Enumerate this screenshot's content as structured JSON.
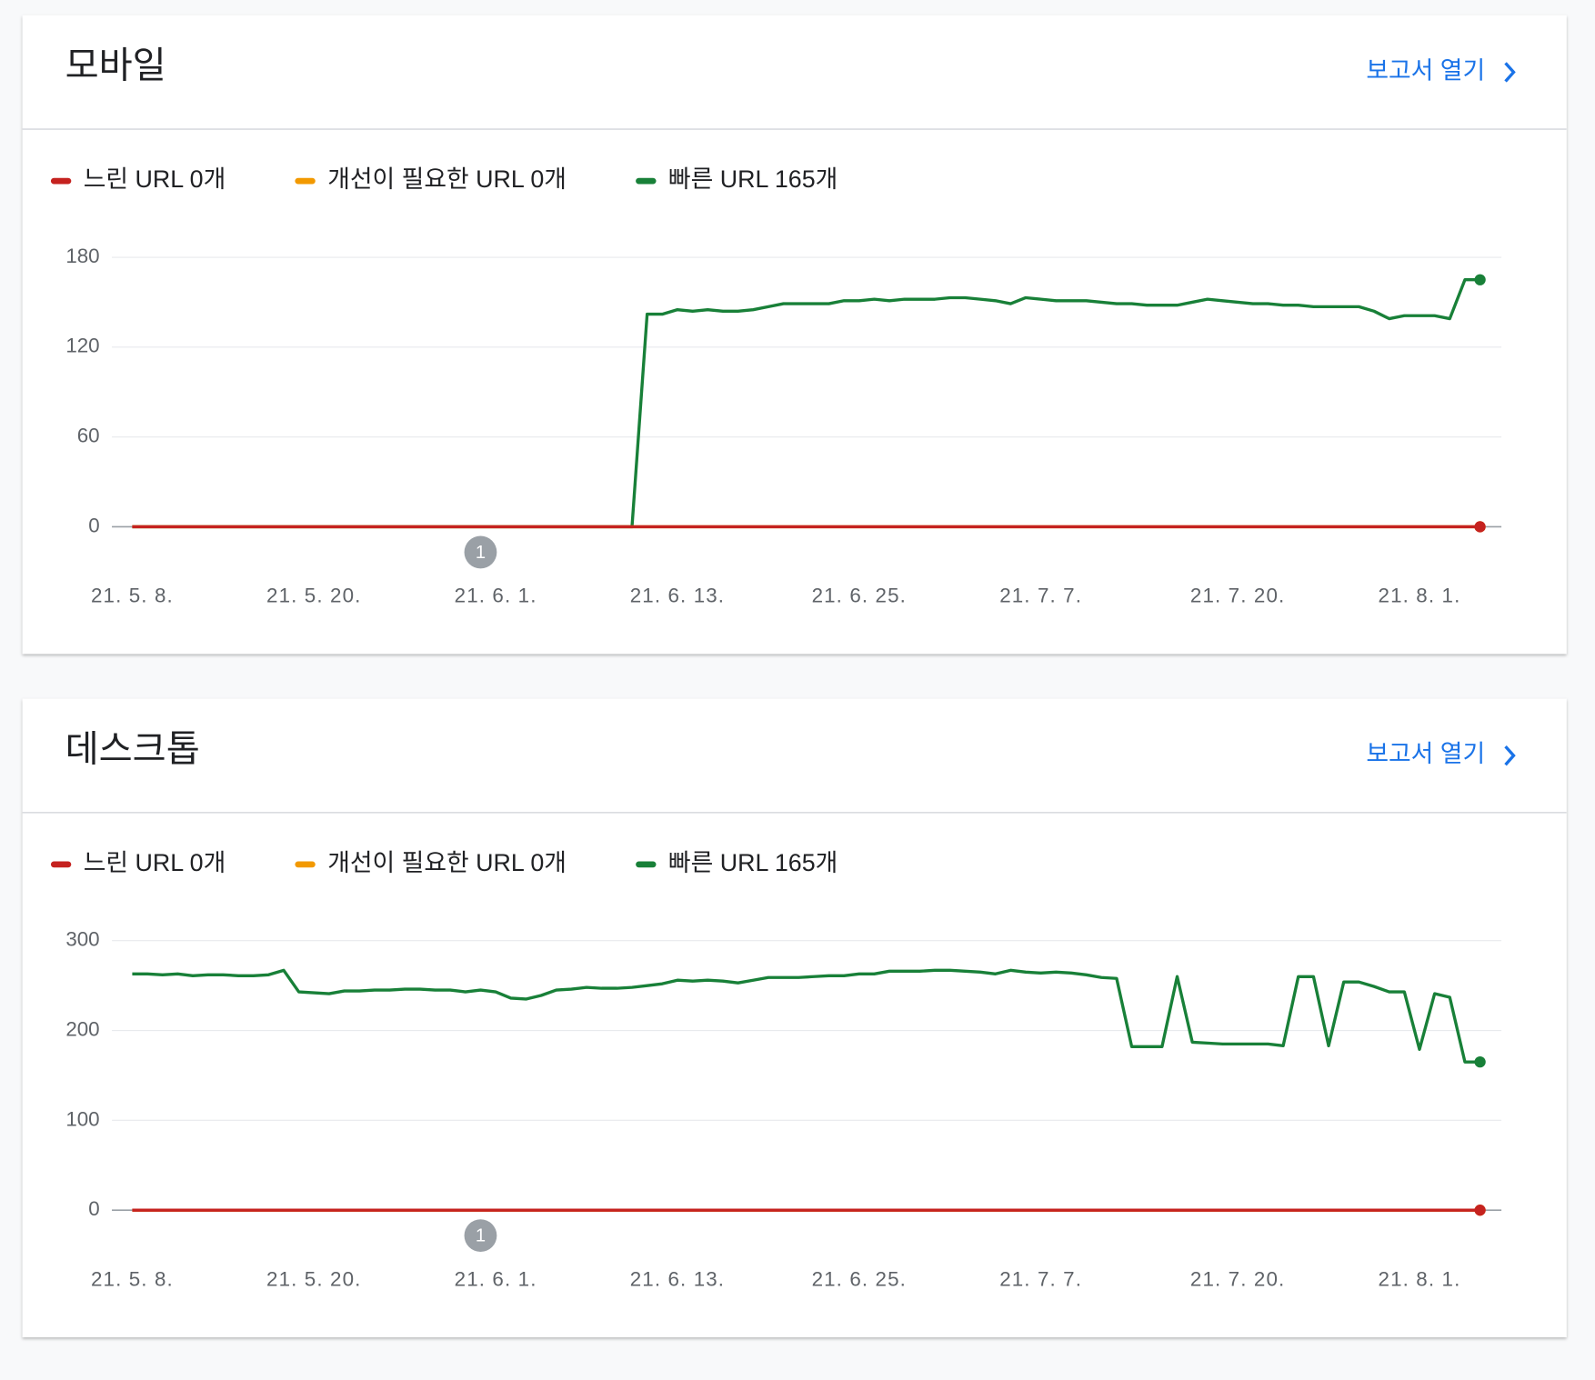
{
  "chart_data": [
    {
      "type": "line",
      "title": "모바일",
      "link": "보고서 열기",
      "annotation": "1",
      "categories": [
        "21. 5. 8.",
        null,
        null,
        null,
        null,
        null,
        null,
        null,
        null,
        null,
        null,
        null,
        "21. 5. 20.",
        null,
        null,
        null,
        null,
        null,
        null,
        null,
        null,
        null,
        null,
        null,
        "21. 6. 1.",
        null,
        null,
        null,
        null,
        null,
        null,
        null,
        null,
        null,
        null,
        null,
        "21. 6. 13.",
        null,
        null,
        null,
        null,
        null,
        null,
        null,
        null,
        null,
        null,
        null,
        "21. 6. 25.",
        null,
        null,
        null,
        null,
        null,
        null,
        null,
        null,
        null,
        null,
        null,
        "21. 7. 7.",
        null,
        null,
        null,
        null,
        null,
        null,
        null,
        null,
        null,
        null,
        null,
        null,
        "21. 7. 20.",
        null,
        null,
        null,
        null,
        null,
        null,
        null,
        null,
        null,
        null,
        null,
        "21. 8. 1.",
        null,
        null,
        null,
        null
      ],
      "ylim": [
        0,
        180
      ],
      "yticks": [
        0,
        60,
        120,
        180
      ],
      "grid": true,
      "series": [
        {
          "name": "느린 URL 0개",
          "color": "#c5221f",
          "values": [
            0,
            0,
            0,
            0,
            0,
            0,
            0,
            0,
            0,
            0,
            0,
            0,
            0,
            0,
            0,
            0,
            0,
            0,
            0,
            0,
            0,
            0,
            0,
            0,
            0,
            0,
            0,
            0,
            0,
            0,
            0,
            0,
            0,
            0,
            0,
            0,
            0,
            0,
            0,
            0,
            0,
            0,
            0,
            0,
            0,
            0,
            0,
            0,
            0,
            0,
            0,
            0,
            0,
            0,
            0,
            0,
            0,
            0,
            0,
            0,
            0,
            0,
            0,
            0,
            0,
            0,
            0,
            0,
            0,
            0,
            0,
            0,
            0,
            0,
            0,
            0,
            0,
            0,
            0,
            0,
            0,
            0,
            0,
            0,
            0,
            0,
            0,
            0,
            0,
            0
          ]
        },
        {
          "name": "개선이 필요한 URL 0개",
          "color": "#f29900",
          "values": [
            0,
            0,
            0,
            0,
            0,
            0,
            0,
            0,
            0,
            0,
            0,
            0,
            0,
            0,
            0,
            0,
            0,
            0,
            0,
            0,
            0,
            0,
            0,
            0,
            0,
            0,
            0,
            0,
            0,
            0,
            0,
            0,
            0,
            0,
            0,
            0,
            0,
            0,
            0,
            0,
            0,
            0,
            0,
            0,
            0,
            0,
            0,
            0,
            0,
            0,
            0,
            0,
            0,
            0,
            0,
            0,
            0,
            0,
            0,
            0,
            0,
            0,
            0,
            0,
            0,
            0,
            0,
            0,
            0,
            0,
            0,
            0,
            0,
            0,
            0,
            0,
            0,
            0,
            0,
            0,
            0,
            0,
            0,
            0,
            0,
            0,
            0,
            0,
            0,
            0
          ]
        },
        {
          "name": "빠른 URL 165개",
          "color": "#188038",
          "values": [
            0,
            0,
            0,
            0,
            0,
            0,
            0,
            0,
            0,
            0,
            0,
            0,
            0,
            0,
            0,
            0,
            0,
            0,
            0,
            0,
            0,
            0,
            0,
            0,
            0,
            0,
            0,
            0,
            0,
            0,
            0,
            0,
            0,
            0,
            142,
            142,
            145,
            144,
            145,
            144,
            144,
            145,
            147,
            149,
            149,
            149,
            149,
            151,
            151,
            152,
            151,
            152,
            152,
            152,
            153,
            153,
            152,
            151,
            149,
            153,
            152,
            151,
            151,
            151,
            150,
            149,
            149,
            148,
            148,
            148,
            150,
            152,
            151,
            150,
            149,
            149,
            148,
            148,
            147,
            147,
            147,
            147,
            144,
            139,
            141,
            141,
            141,
            139,
            165,
            165
          ]
        }
      ]
    },
    {
      "type": "line",
      "title": "데스크톱",
      "link": "보고서 열기",
      "annotation": "1",
      "categories": [
        "21. 5. 8.",
        null,
        null,
        null,
        null,
        null,
        null,
        null,
        null,
        null,
        null,
        null,
        "21. 5. 20.",
        null,
        null,
        null,
        null,
        null,
        null,
        null,
        null,
        null,
        null,
        null,
        "21. 6. 1.",
        null,
        null,
        null,
        null,
        null,
        null,
        null,
        null,
        null,
        null,
        null,
        "21. 6. 13.",
        null,
        null,
        null,
        null,
        null,
        null,
        null,
        null,
        null,
        null,
        null,
        "21. 6. 25.",
        null,
        null,
        null,
        null,
        null,
        null,
        null,
        null,
        null,
        null,
        null,
        "21. 7. 7.",
        null,
        null,
        null,
        null,
        null,
        null,
        null,
        null,
        null,
        null,
        null,
        null,
        "21. 7. 20.",
        null,
        null,
        null,
        null,
        null,
        null,
        null,
        null,
        null,
        null,
        null,
        "21. 8. 1.",
        null,
        null,
        null,
        null
      ],
      "ylim": [
        0,
        300
      ],
      "yticks": [
        0,
        100,
        200,
        300
      ],
      "grid": true,
      "series": [
        {
          "name": "느린 URL 0개",
          "color": "#c5221f",
          "values": [
            0,
            0,
            0,
            0,
            0,
            0,
            0,
            0,
            0,
            0,
            0,
            0,
            0,
            0,
            0,
            0,
            0,
            0,
            0,
            0,
            0,
            0,
            0,
            0,
            0,
            0,
            0,
            0,
            0,
            0,
            0,
            0,
            0,
            0,
            0,
            0,
            0,
            0,
            0,
            0,
            0,
            0,
            0,
            0,
            0,
            0,
            0,
            0,
            0,
            0,
            0,
            0,
            0,
            0,
            0,
            0,
            0,
            0,
            0,
            0,
            0,
            0,
            0,
            0,
            0,
            0,
            0,
            0,
            0,
            0,
            0,
            0,
            0,
            0,
            0,
            0,
            0,
            0,
            0,
            0,
            0,
            0,
            0,
            0,
            0,
            0,
            0,
            0,
            0,
            0
          ]
        },
        {
          "name": "개선이 필요한 URL 0개",
          "color": "#f29900",
          "values": [
            0,
            0,
            0,
            0,
            0,
            0,
            0,
            0,
            0,
            0,
            0,
            0,
            0,
            0,
            0,
            0,
            0,
            0,
            0,
            0,
            0,
            0,
            0,
            0,
            0,
            0,
            0,
            0,
            0,
            0,
            0,
            0,
            0,
            0,
            0,
            0,
            0,
            0,
            0,
            0,
            0,
            0,
            0,
            0,
            0,
            0,
            0,
            0,
            0,
            0,
            0,
            0,
            0,
            0,
            0,
            0,
            0,
            0,
            0,
            0,
            0,
            0,
            0,
            0,
            0,
            0,
            0,
            0,
            0,
            0,
            0,
            0,
            0,
            0,
            0,
            0,
            0,
            0,
            0,
            0,
            0,
            0,
            0,
            0,
            0,
            0,
            0,
            0,
            0,
            0
          ]
        },
        {
          "name": "빠른 URL 165개",
          "color": "#188038",
          "values": [
            263,
            263,
            262,
            263,
            261,
            262,
            262,
            261,
            261,
            262,
            267,
            243,
            242,
            241,
            244,
            244,
            245,
            245,
            246,
            246,
            245,
            245,
            243,
            245,
            243,
            236,
            235,
            239,
            245,
            246,
            248,
            247,
            247,
            248,
            250,
            252,
            256,
            255,
            256,
            255,
            253,
            256,
            259,
            259,
            259,
            260,
            261,
            261,
            263,
            263,
            266,
            266,
            266,
            267,
            267,
            266,
            265,
            263,
            267,
            265,
            264,
            265,
            264,
            262,
            259,
            258,
            182,
            182,
            182,
            260,
            187,
            186,
            185,
            185,
            185,
            185,
            183,
            260,
            260,
            183,
            254,
            254,
            249,
            243,
            243,
            179,
            241,
            237,
            165,
            165
          ]
        }
      ]
    }
  ]
}
